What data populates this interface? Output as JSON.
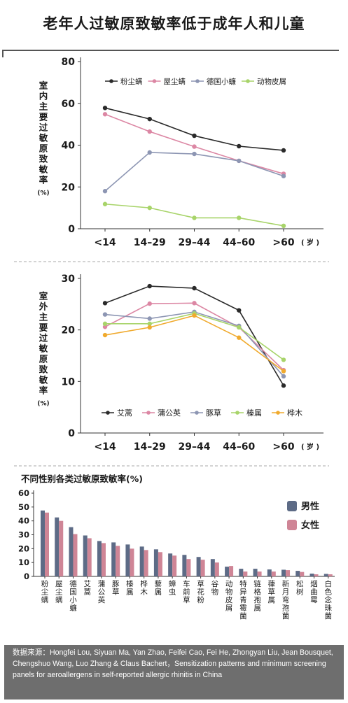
{
  "title": "老年人过敏原致敏率低于成年人和儿童",
  "chart_data": [
    {
      "type": "line",
      "id": "indoor",
      "ylabel": "室内主要过敏原致敏率",
      "ylabel_unit": "(%)",
      "x_unit": "岁",
      "categories": [
        "<14",
        "14–29",
        "29–44",
        "44–60",
        ">60"
      ],
      "ylim": [
        0,
        80
      ],
      "yticks": [
        0,
        20,
        40,
        60,
        80
      ],
      "legend_position": "top-right",
      "series": [
        {
          "name": "粉尘螨",
          "color": "#2a2a2a",
          "values": [
            57.8,
            52.5,
            44.5,
            39.5,
            37.5
          ]
        },
        {
          "name": "屋尘螨",
          "color": "#dc87a4",
          "values": [
            54.8,
            46.5,
            39.3,
            32.5,
            26.3
          ]
        },
        {
          "name": "德国小蠊",
          "color": "#8d96b3",
          "values": [
            18.0,
            36.5,
            35.8,
            32.5,
            25.2
          ]
        },
        {
          "name": "动物皮屑",
          "color": "#a8d46a",
          "values": [
            11.8,
            10.0,
            5.2,
            5.2,
            1.4
          ]
        }
      ]
    },
    {
      "type": "line",
      "id": "outdoor",
      "ylabel": "室外主要过敏原致敏率",
      "ylabel_unit": "(%)",
      "x_unit": "岁",
      "categories": [
        "<14",
        "14–29",
        "29–44",
        "44–60",
        ">60"
      ],
      "ylim": [
        0,
        30
      ],
      "yticks": [
        0,
        10,
        20,
        30
      ],
      "legend_position": "bottom",
      "series": [
        {
          "name": "艾蒿",
          "color": "#2a2a2a",
          "values": [
            25.2,
            28.5,
            28.1,
            23.8,
            9.2
          ]
        },
        {
          "name": "蒲公英",
          "color": "#dc87a4",
          "values": [
            20.6,
            25.1,
            25.2,
            20.5,
            12.2
          ]
        },
        {
          "name": "豚草",
          "color": "#8d96b3",
          "values": [
            23.0,
            22.2,
            23.5,
            20.8,
            11.0
          ]
        },
        {
          "name": "榛属",
          "color": "#a8d46a",
          "values": [
            21.2,
            21.2,
            23.2,
            20.5,
            14.2
          ]
        },
        {
          "name": "桦木",
          "color": "#f0aa2e",
          "values": [
            19.0,
            20.5,
            22.8,
            18.5,
            12.0
          ]
        }
      ]
    },
    {
      "type": "bar",
      "id": "gender",
      "title": "不同性别各类过敏原致敏率(%)",
      "ylim": [
        0,
        60
      ],
      "yticks": [
        0,
        10,
        20,
        30,
        40,
        50,
        60
      ],
      "legend_position": "right",
      "categories": [
        "粉尘螨",
        "屋尘螨",
        "德国小蠊",
        "艾蒿",
        "蒲公英",
        "豚草",
        "榛属",
        "桦木",
        "藜属",
        "蟑虫",
        "车前草",
        "草花粉",
        "谷物",
        "动物皮屑",
        "特异青霉菌",
        "链格孢属",
        "葎草属",
        "新月弯孢菌",
        "松树",
        "烟曲霉",
        "白色念珠菌"
      ],
      "series": [
        {
          "name": "男性",
          "color": "#5d6b86",
          "values": [
            47.5,
            42.5,
            35.5,
            29.5,
            25.5,
            24.5,
            23.0,
            21.5,
            19.5,
            16.5,
            15.5,
            14.0,
            12.5,
            7.0,
            5.5,
            5.5,
            5.0,
            4.8,
            4.0,
            2.0,
            1.8
          ]
        },
        {
          "name": "女性",
          "color": "#cf8596",
          "values": [
            46.0,
            40.0,
            30.5,
            27.5,
            24.0,
            22.0,
            20.0,
            19.0,
            17.5,
            15.0,
            12.5,
            12.0,
            10.0,
            7.5,
            3.5,
            3.5,
            3.5,
            4.5,
            3.2,
            1.5,
            1.5
          ]
        }
      ]
    }
  ],
  "source_text": "数据来源：Hongfei Lou, Siyuan Ma, Yan Zhao, Feifei Cao, Fei He, Zhongyan Liu, Jean Bousquet, Chengshuo Wang, Luo Zhang & Claus Bachert，Sensitization patterns and minimum screening panels for aeroallergens in self-reported allergic rhinitis in China"
}
